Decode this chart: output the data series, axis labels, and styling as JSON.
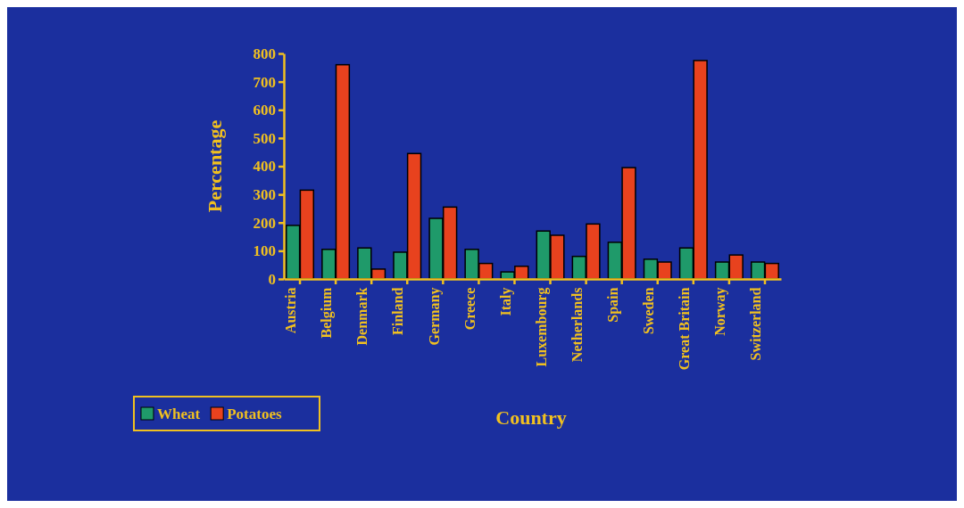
{
  "chart_data": {
    "type": "bar",
    "xlabel": "Country",
    "ylabel": "Percentage",
    "categories": [
      "Austria",
      "Belgium",
      "Denmark",
      "Finland",
      "Germany",
      "Greece",
      "Italy",
      "Luxembourg",
      "Netherlands",
      "Spain",
      "Sweden",
      "Great Britain",
      "Norway",
      "Switzerland"
    ],
    "series": [
      {
        "name": "Wheat",
        "color": "#1f9a6a",
        "values": [
          190,
          105,
          110,
          95,
          215,
          105,
          25,
          170,
          80,
          130,
          70,
          110,
          60,
          60
        ]
      },
      {
        "name": "Potatoes",
        "color": "#e8421e",
        "values": [
          315,
          760,
          35,
          445,
          255,
          55,
          45,
          155,
          195,
          395,
          60,
          775,
          85,
          55
        ]
      }
    ],
    "ylim": [
      0,
      800
    ],
    "yticks": [
      0,
      100,
      200,
      300,
      400,
      500,
      600,
      700,
      800
    ],
    "grid": false,
    "legend": "bottom left"
  }
}
